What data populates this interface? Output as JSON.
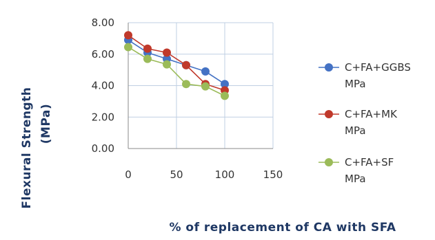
{
  "chart_data": {
    "type": "line",
    "x": [
      0,
      20,
      40,
      60,
      80,
      100
    ],
    "series": [
      {
        "name_line1": "C+FA+GGBS",
        "name_line2": "MPa",
        "color": "#4472c4",
        "values": [
          6.9,
          6.1,
          5.7,
          5.3,
          4.9,
          4.1
        ]
      },
      {
        "name_line1": "C+FA+MK",
        "name_line2": "MPa",
        "color": "#c0392b",
        "values": [
          7.2,
          6.35,
          6.1,
          5.3,
          4.1,
          3.7
        ]
      },
      {
        "name_line1": "C+FA+SF",
        "name_line2": "MPa",
        "color": "#9bbb59",
        "values": [
          6.45,
          5.7,
          5.35,
          4.1,
          3.95,
          3.35
        ]
      }
    ],
    "xlabel": "% of replacement of CA with SFA",
    "ylabel_line1": "Flexural Strength",
    "ylabel_line2": "(MPa)",
    "xlim": [
      0,
      150
    ],
    "ylim": [
      0,
      8
    ],
    "xticks": [
      "0",
      "50",
      "100",
      "150"
    ],
    "yticks": [
      "0.00",
      "2.00",
      "4.00",
      "6.00",
      "8.00"
    ],
    "grid": true,
    "legend_position": "right"
  }
}
